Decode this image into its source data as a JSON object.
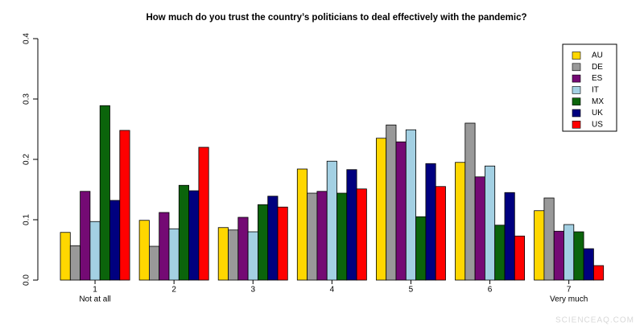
{
  "chart_data": {
    "type": "grouped_bar",
    "title": "How much do you trust the country’s politicians to deal effectively with the pandemic?",
    "categories": [
      "1",
      "2",
      "3",
      "4",
      "5",
      "6",
      "7"
    ],
    "scale_end_labels": {
      "low": "Not at all",
      "high": "Very much"
    },
    "series": [
      {
        "name": "AU",
        "color": "#ffd700",
        "values": [
          0.079,
          0.099,
          0.087,
          0.184,
          0.235,
          0.195,
          0.115
        ]
      },
      {
        "name": "DE",
        "color": "#999999",
        "values": [
          0.057,
          0.056,
          0.083,
          0.144,
          0.257,
          0.26,
          0.136
        ]
      },
      {
        "name": "ES",
        "color": "#740a74",
        "values": [
          0.147,
          0.112,
          0.104,
          0.147,
          0.229,
          0.171,
          0.081
        ]
      },
      {
        "name": "IT",
        "color": "#a3d0e3",
        "values": [
          0.097,
          0.085,
          0.08,
          0.197,
          0.249,
          0.189,
          0.092
        ]
      },
      {
        "name": "MX",
        "color": "#0b640b",
        "values": [
          0.289,
          0.157,
          0.125,
          0.144,
          0.105,
          0.091,
          0.08
        ]
      },
      {
        "name": "UK",
        "color": "#00007f",
        "values": [
          0.132,
          0.148,
          0.139,
          0.183,
          0.193,
          0.145,
          0.052
        ]
      },
      {
        "name": "US",
        "color": "#ff0000",
        "values": [
          0.248,
          0.22,
          0.121,
          0.151,
          0.155,
          0.073,
          0.024
        ]
      }
    ],
    "ylim": [
      0,
      0.4
    ],
    "yticks": [
      {
        "value": 0,
        "label": "0.0"
      },
      0.1,
      0.2,
      0.3,
      0.4
    ],
    "legend": "top-right",
    "watermark": "SCIENCEAQ.COM"
  }
}
